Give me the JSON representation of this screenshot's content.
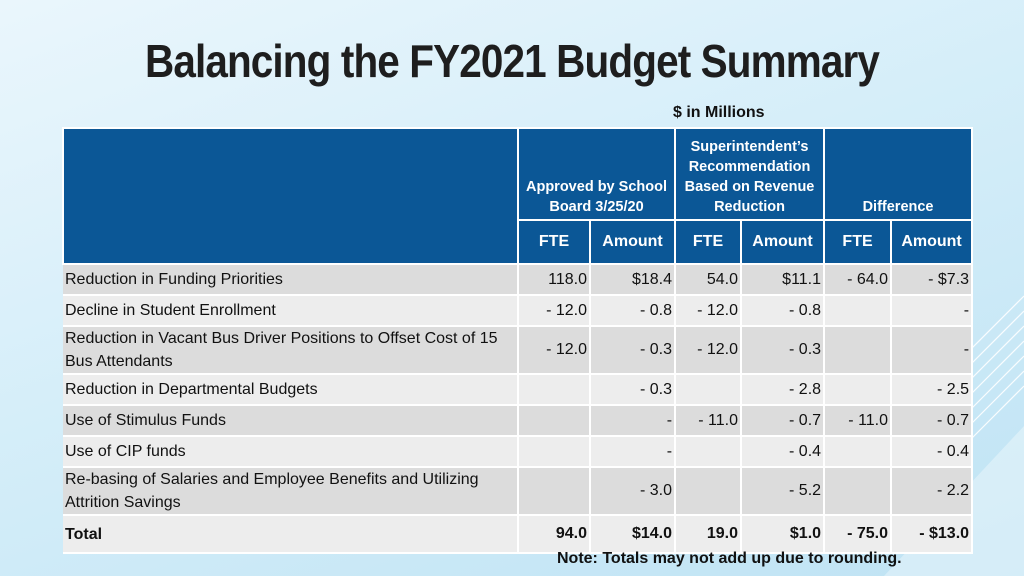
{
  "title": "Balancing the FY2021 Budget Summary",
  "units_label": "$ in Millions",
  "note": "Note:  Totals may not add up due to rounding.",
  "table": {
    "group_headers": [
      "Approved by School Board 3/25/20",
      "Superintendent’s Recommendation Based on Revenue Reduction",
      "Difference"
    ],
    "sub_headers": [
      "FTE",
      "Amount",
      "FTE",
      "Amount",
      "FTE",
      "Amount"
    ],
    "rows": [
      {
        "label": "Reduction in Funding Priorities",
        "values": [
          "118.0",
          "$18.4",
          "54.0",
          "$11.1",
          "- 64.0",
          "- $7.3"
        ]
      },
      {
        "label": "Decline in Student Enrollment",
        "values": [
          "- 12.0",
          "- 0.8",
          "- 12.0",
          "- 0.8",
          "",
          "-"
        ]
      },
      {
        "label": "Reduction in Vacant Bus Driver Positions to Offset Cost of 15 Bus Attendants",
        "values": [
          "- 12.0",
          "- 0.3",
          "- 12.0",
          "- 0.3",
          "",
          "-"
        ]
      },
      {
        "label": "Reduction in Departmental Budgets",
        "values": [
          "",
          "- 0.3",
          "",
          "- 2.8",
          "",
          "- 2.5"
        ]
      },
      {
        "label": "Use of Stimulus Funds",
        "values": [
          "",
          "-",
          "- 11.0",
          "- 0.7",
          "- 11.0",
          "- 0.7"
        ]
      },
      {
        "label": "Use of CIP funds",
        "values": [
          "",
          "-",
          "",
          "- 0.4",
          "",
          "- 0.4"
        ]
      },
      {
        "label": "Re-basing of Salaries and Employee Benefits and Utilizing Attrition Savings",
        "values": [
          "",
          "- 3.0",
          "",
          "- 5.2",
          "",
          "- 2.2"
        ]
      },
      {
        "label": "Total",
        "values": [
          "94.0",
          "$14.0",
          "19.0",
          "$1.0",
          "- 75.0",
          "- $13.0"
        ]
      }
    ]
  }
}
